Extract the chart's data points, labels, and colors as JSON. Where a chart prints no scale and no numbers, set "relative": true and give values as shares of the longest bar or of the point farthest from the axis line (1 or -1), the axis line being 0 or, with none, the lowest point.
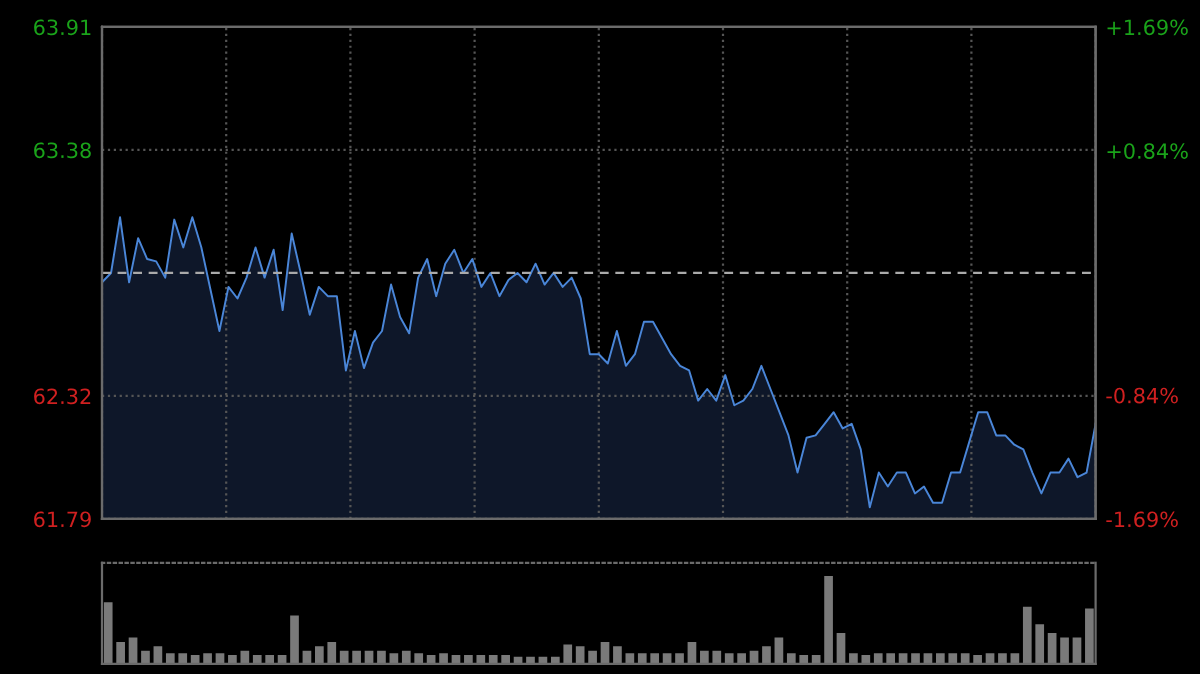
{
  "chart_data": [
    {
      "type": "area",
      "categories": [
        null,
        null,
        null,
        null,
        null,
        null,
        null,
        null,
        null,
        null,
        null,
        null,
        null,
        null,
        null,
        null,
        null,
        null,
        null,
        null,
        null,
        null,
        null,
        null,
        null,
        null,
        null,
        null,
        null,
        null,
        null,
        null,
        null,
        null,
        null,
        null,
        null,
        null,
        null,
        null,
        null,
        null,
        null,
        null,
        null,
        null,
        null,
        null,
        null,
        null,
        null,
        null,
        null,
        null,
        null,
        null,
        null,
        null,
        null,
        null,
        null,
        null,
        null,
        null,
        null,
        null,
        null,
        null,
        null,
        null,
        null,
        null,
        null,
        null,
        null,
        null,
        null,
        null,
        null,
        null,
        null,
        null,
        null,
        null,
        null,
        null,
        null,
        null,
        null,
        null,
        null,
        null,
        null,
        null,
        null,
        null,
        null,
        null,
        null,
        null,
        null,
        null,
        null,
        null,
        null,
        null,
        null,
        null,
        null,
        null,
        null
      ],
      "series": [
        {
          "color": "#4a86d8",
          "values": [
            62.81,
            62.85,
            63.09,
            62.81,
            63.0,
            62.91,
            62.9,
            62.83,
            63.08,
            62.96,
            63.09,
            62.96,
            62.78,
            62.6,
            62.79,
            62.74,
            62.83,
            62.96,
            62.83,
            62.95,
            62.69,
            63.02,
            62.85,
            62.67,
            62.79,
            62.75,
            62.75,
            62.43,
            62.6,
            62.44,
            62.55,
            62.6,
            62.8,
            62.66,
            62.59,
            62.83,
            62.91,
            62.75,
            62.89,
            62.95,
            62.85,
            62.91,
            62.79,
            62.85,
            62.75,
            62.82,
            62.85,
            62.81,
            62.89,
            62.8,
            62.85,
            62.79,
            62.83,
            62.74,
            62.5,
            62.5,
            62.46,
            62.6,
            62.45,
            62.5,
            62.64,
            62.64,
            62.57,
            62.5,
            62.45,
            62.43,
            62.3,
            62.35,
            62.3,
            62.41,
            62.28,
            62.3,
            62.35,
            62.45,
            62.35,
            62.25,
            62.15,
            61.99,
            62.14,
            62.15,
            62.2,
            62.25,
            62.18,
            62.2,
            62.09,
            61.84,
            61.99,
            61.93,
            61.99,
            61.99,
            61.9,
            61.93,
            61.86,
            61.86,
            61.99,
            61.99,
            62.12,
            62.25,
            62.25,
            62.15,
            62.15,
            62.11,
            62.09,
            61.99,
            61.9,
            61.99,
            61.99,
            62.05,
            61.97,
            61.99,
            62.2
          ]
        }
      ],
      "ylim": [
        61.79,
        63.91
      ],
      "yticks": [
        61.79,
        62.32,
        63.38,
        63.91
      ],
      "y2lim": [
        -1.69,
        1.69
      ],
      "y2ticks": [
        {
          "value": -1.69,
          "label": "-1.69%"
        },
        {
          "value": -0.84,
          "label": "-0.84%"
        },
        {
          "value": 0.84,
          "label": "+0.84%"
        },
        {
          "value": 1.69,
          "label": "+1.69%"
        }
      ],
      "ref_lines": [
        {
          "axis": "y",
          "value": 62.85,
          "line_style": "dashed"
        }
      ],
      "grid": true,
      "tick_labels": "y"
    },
    {
      "type": "bar",
      "relative": true,
      "color": "#7a7a7a",
      "categories": [
        null,
        null,
        null,
        null,
        null,
        null,
        null,
        null,
        null,
        null,
        null,
        null,
        null,
        null,
        null,
        null,
        null,
        null,
        null,
        null,
        null,
        null,
        null,
        null,
        null,
        null,
        null,
        null,
        null,
        null,
        null,
        null,
        null,
        null,
        null,
        null,
        null,
        null,
        null,
        null,
        null,
        null,
        null,
        null,
        null,
        null,
        null,
        null,
        null,
        null,
        null,
        null,
        null,
        null,
        null,
        null,
        null,
        null,
        null,
        null,
        null,
        null,
        null,
        null,
        null,
        null,
        null,
        null,
        null,
        null,
        null,
        null,
        null,
        null,
        null,
        null,
        null,
        null,
        null,
        null
      ],
      "values": [
        0.7,
        0.25,
        0.3,
        0.15,
        0.2,
        0.12,
        0.12,
        0.1,
        0.12,
        0.12,
        0.1,
        0.15,
        0.1,
        0.1,
        0.1,
        0.55,
        0.15,
        0.2,
        0.25,
        0.15,
        0.15,
        0.15,
        0.15,
        0.12,
        0.15,
        0.12,
        0.1,
        0.12,
        0.1,
        0.1,
        0.1,
        0.1,
        0.1,
        0.08,
        0.08,
        0.08,
        0.08,
        0.22,
        0.2,
        0.15,
        0.25,
        0.2,
        0.12,
        0.12,
        0.12,
        0.12,
        0.12,
        0.25,
        0.15,
        0.15,
        0.12,
        0.12,
        0.15,
        0.2,
        0.3,
        0.12,
        0.1,
        0.1,
        1.0,
        0.35,
        0.12,
        0.1,
        0.12,
        0.12,
        0.12,
        0.12,
        0.12,
        0.12,
        0.12,
        0.12,
        0.1,
        0.12,
        0.12,
        0.12,
        0.65,
        0.45,
        0.35,
        0.3,
        0.3,
        0.63
      ],
      "tick_labels": false
    }
  ]
}
